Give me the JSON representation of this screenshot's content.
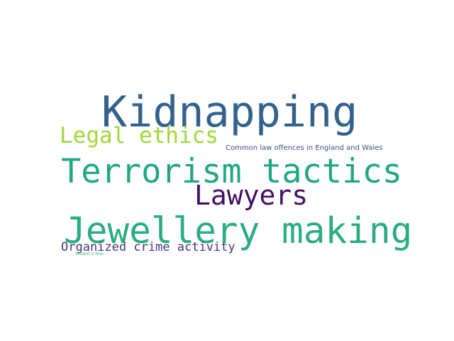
{
  "words": [
    {
      "text": "Kidnapping",
      "color": "#33638d"
    },
    {
      "text": "Legal ethics",
      "color": "#a0da39"
    },
    {
      "text": "Common law offences in England and Wales",
      "color": "#3b528b"
    },
    {
      "text": "Terrorism tactics",
      "color": "#22a785"
    },
    {
      "text": "Lawyers",
      "color": "#440f61"
    },
    {
      "text": "Jewellery making",
      "color": "#2aae80"
    },
    {
      "text": "Organized crime activity",
      "color": "#46317e"
    },
    {
      "text": "Violent crime",
      "color": "#35b779"
    }
  ]
}
